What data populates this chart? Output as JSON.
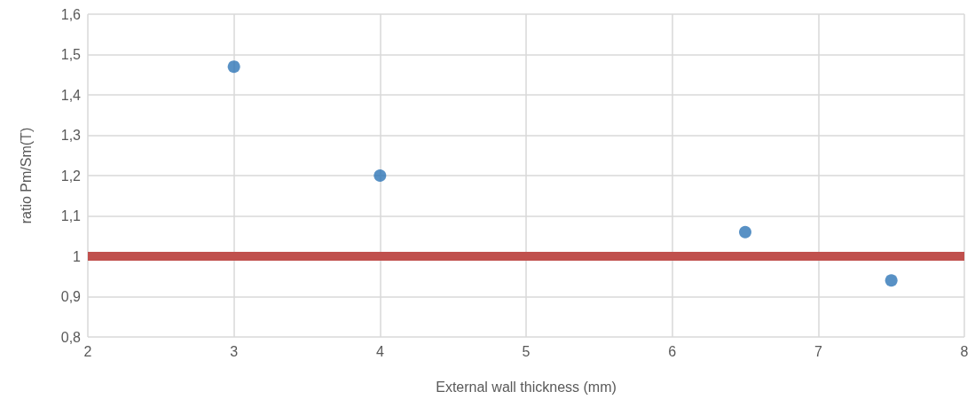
{
  "chart_data": {
    "type": "scatter",
    "xlabel": "External wall thickness (mm)",
    "ylabel": "ratio Pm/Sm(T)",
    "x": [
      3,
      4,
      6.5,
      7.5
    ],
    "series": [
      {
        "color": "#2e75b6",
        "values": [
          1.47,
          1.2,
          1.06,
          0.94
        ]
      }
    ],
    "xlim": [
      2,
      8
    ],
    "xticks": [
      2,
      3,
      4,
      5,
      6,
      7,
      8
    ],
    "ylim": [
      0.8,
      1.6
    ],
    "yticks": [
      {
        "value": 0.8,
        "label": "0,8"
      },
      {
        "value": 0.9,
        "label": "0,9"
      },
      {
        "value": 1,
        "label": "1"
      },
      {
        "value": 1.1,
        "label": "1,1"
      },
      {
        "value": 1.2,
        "label": "1,2"
      },
      {
        "value": 1.3,
        "label": "1,3"
      },
      {
        "value": 1.4,
        "label": "1,4"
      },
      {
        "value": 1.5,
        "label": "1,5"
      },
      {
        "value": 1.6,
        "label": "1,6"
      }
    ],
    "ref_lines": [
      {
        "axis": "y",
        "value": 1,
        "color": "#c0504d",
        "line_style": "solid"
      }
    ],
    "grid": true,
    "marker": "circle"
  }
}
